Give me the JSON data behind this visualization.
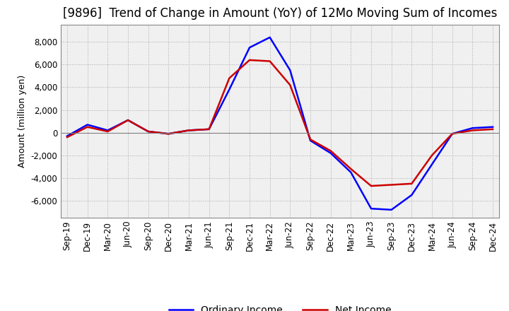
{
  "title": "[9896]  Trend of Change in Amount (YoY) of 12Mo Moving Sum of Incomes",
  "ylabel": "Amount (million yen)",
  "x_labels": [
    "Sep-19",
    "Dec-19",
    "Mar-20",
    "Jun-20",
    "Sep-20",
    "Dec-20",
    "Mar-21",
    "Jun-21",
    "Sep-21",
    "Dec-21",
    "Mar-22",
    "Jun-22",
    "Sep-22",
    "Dec-22",
    "Mar-23",
    "Jun-23",
    "Sep-23",
    "Dec-23",
    "Mar-24",
    "Jun-24",
    "Sep-24",
    "Dec-24"
  ],
  "ordinary_income": [
    -300,
    700,
    200,
    1100,
    100,
    -100,
    200,
    300,
    3800,
    7500,
    8400,
    5500,
    -700,
    -1800,
    -3500,
    -6700,
    -6800,
    -5500,
    -2800,
    -100,
    400,
    500
  ],
  "net_income": [
    -400,
    500,
    100,
    1100,
    100,
    -100,
    200,
    300,
    4800,
    6400,
    6300,
    4200,
    -600,
    -1600,
    -3200,
    -4700,
    -4600,
    -4500,
    -2000,
    -100,
    200,
    300
  ],
  "ordinary_income_color": "#0000FF",
  "net_income_color": "#CC0000",
  "ylim": [
    -7500,
    9500
  ],
  "yticks": [
    -6000,
    -4000,
    -2000,
    0,
    2000,
    4000,
    6000,
    8000
  ],
  "plot_bg_color": "#F0F0F0",
  "background_color": "#FFFFFF",
  "grid_color": "#AAAAAA",
  "title_fontsize": 12,
  "axis_fontsize": 9,
  "tick_fontsize": 8.5,
  "line_width": 1.8,
  "legend_loc": "lower center",
  "legend_ncol": 2
}
